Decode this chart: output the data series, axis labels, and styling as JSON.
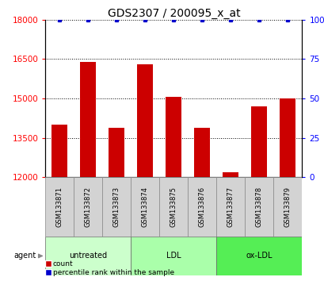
{
  "title": "GDS2307 / 200095_x_at",
  "samples": [
    "GSM133871",
    "GSM133872",
    "GSM133873",
    "GSM133874",
    "GSM133875",
    "GSM133876",
    "GSM133877",
    "GSM133878",
    "GSM133879"
  ],
  "counts": [
    14000,
    16400,
    13900,
    16300,
    15050,
    13900,
    12200,
    14700,
    15000
  ],
  "percentiles": [
    100,
    100,
    100,
    100,
    100,
    100,
    100,
    100,
    100
  ],
  "groups": [
    {
      "label": "untreated",
      "start": 0,
      "end": 3,
      "color": "#ccffcc"
    },
    {
      "label": "LDL",
      "start": 3,
      "end": 6,
      "color": "#aaffaa"
    },
    {
      "label": "ox-LDL",
      "start": 6,
      "end": 9,
      "color": "#55ee55"
    }
  ],
  "ylim_left": [
    12000,
    18000
  ],
  "yticks_left": [
    12000,
    13500,
    15000,
    16500,
    18000
  ],
  "ylim_right": [
    0,
    100
  ],
  "yticks_right": [
    0,
    25,
    50,
    75,
    100
  ],
  "bar_color": "#cc0000",
  "dot_color": "#0000cc",
  "bar_width": 0.55,
  "title_fontsize": 10,
  "tick_fontsize": 7.5,
  "sample_fontsize": 6,
  "group_fontsize": 7,
  "legend_fontsize": 6.5
}
